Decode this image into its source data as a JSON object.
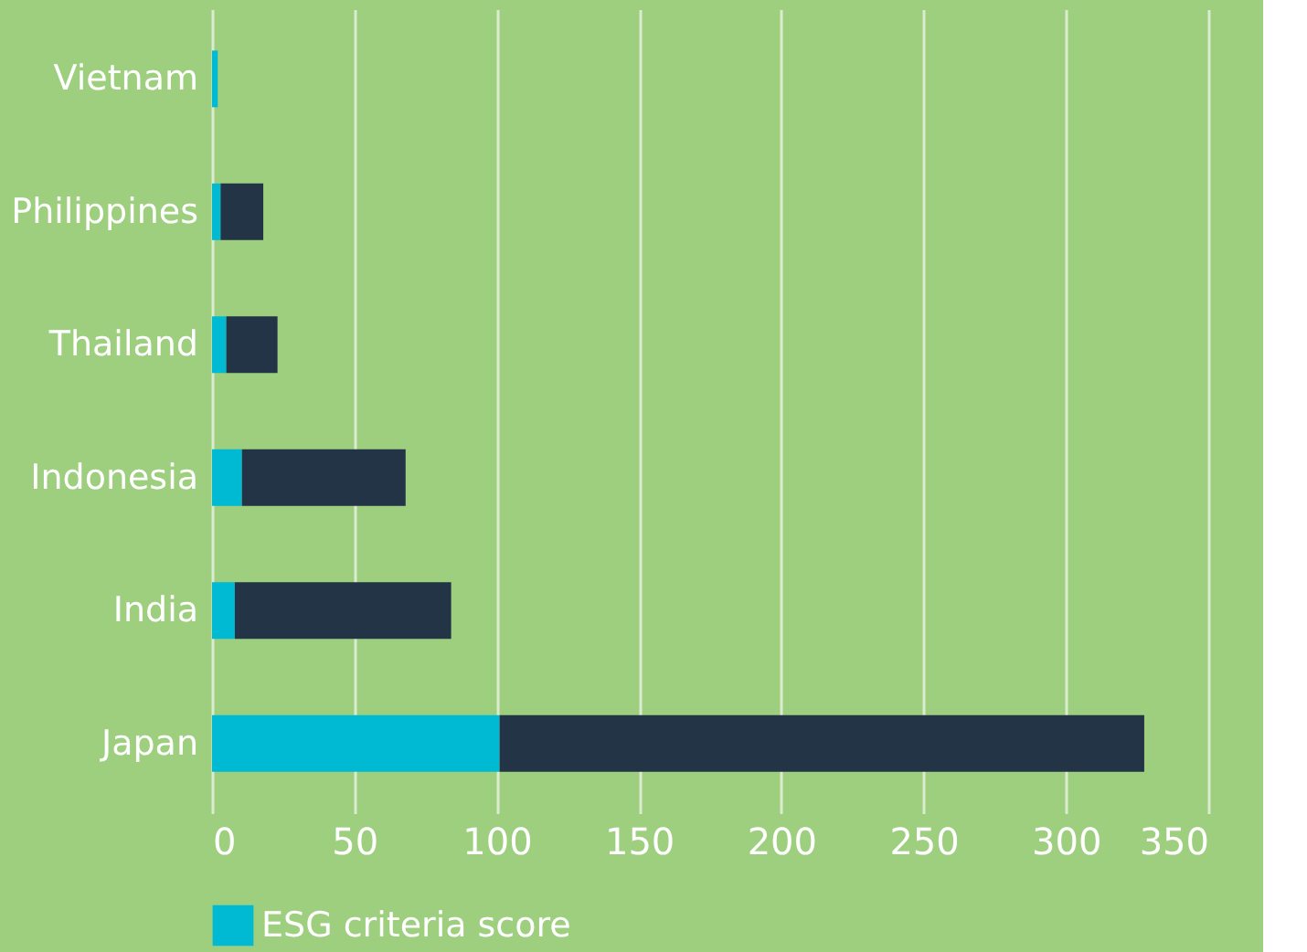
{
  "chart_data": {
    "type": "bar",
    "orientation": "horizontal",
    "stacked": true,
    "categories": [
      "Vietnam",
      "Philippines",
      "Thailand",
      "Indonesia",
      "India",
      "Japan"
    ],
    "series": [
      {
        "name": "ESG criteria score",
        "color": "#00b9d3",
        "values": [
          2,
          3,
          5,
          10.5,
          8,
          101
        ]
      },
      {
        "color": "#223446",
        "values": [
          null,
          15,
          18,
          57.5,
          76,
          226.5
        ]
      }
    ],
    "xlim": [
      0,
      350
    ],
    "xticks": [
      0,
      50,
      100,
      150,
      200,
      250,
      300,
      350
    ],
    "grid": "x",
    "legend": "bottom"
  }
}
